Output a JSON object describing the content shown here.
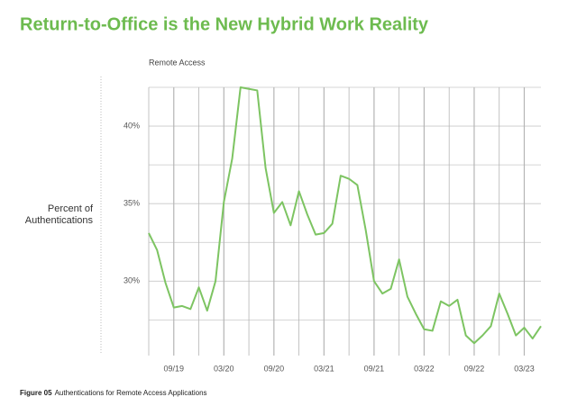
{
  "chart_data": {
    "type": "line",
    "title": "Return-to-Office is the New Hybrid Work Reality",
    "subtitle": "Remote Access",
    "y_label": [
      "Percent of",
      "Authentications"
    ],
    "caption_label": "Figure 05",
    "caption_text": "Authentications for Remote Access Applications",
    "categories": [
      null,
      null,
      null,
      "09/19",
      null,
      null,
      null,
      null,
      null,
      "03/20",
      null,
      null,
      null,
      null,
      null,
      "09/20",
      null,
      null,
      null,
      null,
      null,
      "03/21",
      null,
      null,
      null,
      null,
      null,
      "09/21",
      null,
      null,
      null,
      null,
      null,
      "03/22",
      null,
      null,
      null,
      null,
      null,
      "09/22",
      null,
      null,
      null,
      null,
      null,
      "03/23",
      null,
      null
    ],
    "series": [
      {
        "name": "Remote Access",
        "color": "#7dc462",
        "values": [
          33.1,
          32.0,
          29.9,
          28.3,
          28.4,
          28.2,
          29.6,
          28.1,
          30.0,
          35.1,
          37.9,
          42.5,
          42.4,
          42.3,
          37.3,
          34.4,
          35.1,
          33.6,
          35.8,
          34.3,
          33.0,
          33.1,
          33.7,
          36.8,
          36.6,
          36.2,
          33.3,
          30.0,
          29.2,
          29.5,
          31.4,
          29.0,
          27.9,
          26.9,
          26.8,
          28.7,
          28.4,
          28.8,
          26.5,
          26.0,
          26.5,
          27.1,
          29.2,
          27.9,
          26.5,
          27.0,
          26.3,
          27.1
        ]
      }
    ],
    "ylim": [
      25.2,
      42.5
    ],
    "yticks": [
      {
        "value": 30,
        "label": "30%"
      },
      {
        "value": 35,
        "label": "35%"
      },
      {
        "value": 40,
        "label": "40%"
      }
    ],
    "minor_yticks": [
      27.5,
      32.5,
      37.5,
      42.5
    ],
    "grid": true
  }
}
